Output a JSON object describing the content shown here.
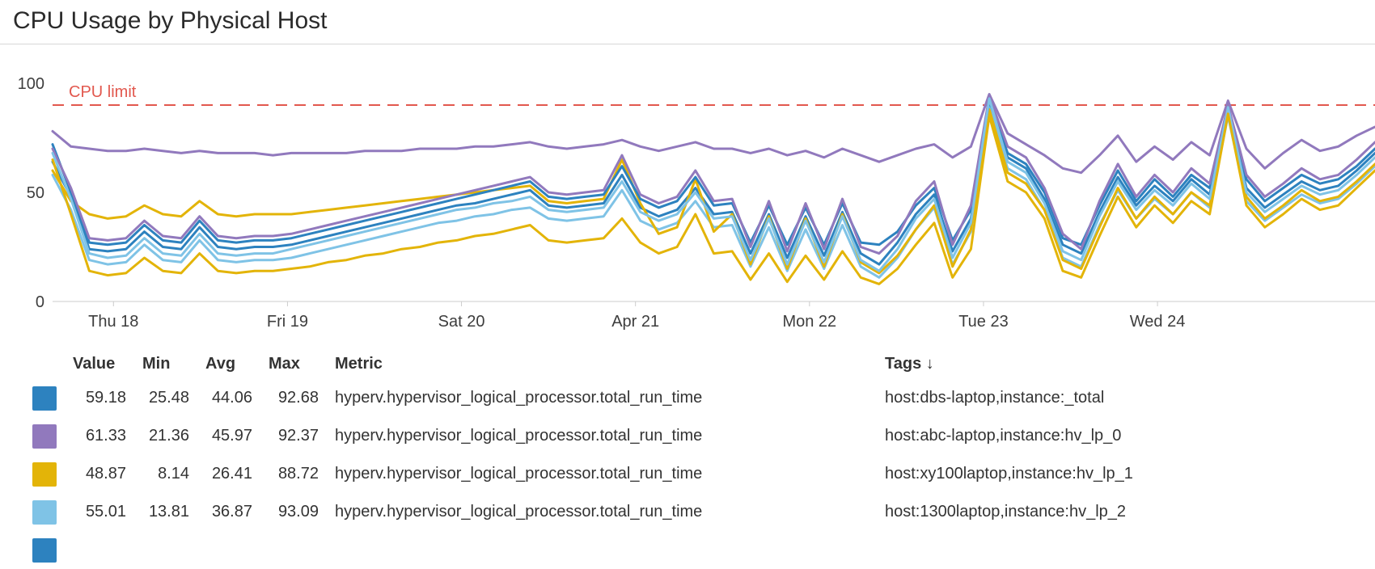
{
  "header": {
    "title": "CPU Usage by Physical Host"
  },
  "chart_data": {
    "type": "line",
    "title": "CPU Usage by Physical Host",
    "xlabel": "",
    "ylabel": "",
    "ylim": [
      0,
      100
    ],
    "grid": false,
    "y_axis": {
      "min": 0,
      "max": 100,
      "ticks": [
        0,
        50,
        100
      ]
    },
    "x_axis": {
      "start_day": 17.65,
      "end_day": 25.25,
      "ticks": [
        {
          "day": 18,
          "label": "Thu 18"
        },
        {
          "day": 19,
          "label": "Fri 19"
        },
        {
          "day": 20,
          "label": "Sat 20"
        },
        {
          "day": 21,
          "label": "Apr 21"
        },
        {
          "day": 22,
          "label": "Mon 22"
        },
        {
          "day": 23,
          "label": "Tue 23"
        },
        {
          "day": 24,
          "label": "Wed 24"
        }
      ]
    },
    "limit_line": {
      "value": 90,
      "label": "CPU limit",
      "color": "#e2584e"
    },
    "series": [
      {
        "label": "",
        "color": "#9179bd",
        "values": [
          78,
          71,
          70,
          69,
          69,
          70,
          69,
          68,
          69,
          68,
          68,
          68,
          67,
          68,
          68,
          68,
          68,
          69,
          69,
          69,
          70,
          70,
          70,
          71,
          71,
          72,
          73,
          71,
          70,
          71,
          72,
          74,
          71,
          69,
          71,
          73,
          70,
          70,
          68,
          70,
          67,
          69,
          66,
          70,
          67,
          64,
          67,
          70,
          72,
          66,
          71,
          95,
          77,
          72,
          67,
          61,
          59,
          67,
          76,
          64,
          71,
          65,
          73,
          67,
          92,
          70,
          61,
          68,
          74,
          69,
          71,
          76,
          80
        ]
      },
      {
        "label": "",
        "color": "#2d82bf",
        "values": [
          64,
          48,
          24,
          23,
          24,
          32,
          25,
          24,
          34,
          25,
          24,
          25,
          25,
          26,
          28,
          30,
          32,
          34,
          36,
          38,
          40,
          42,
          44,
          45,
          47,
          49,
          51,
          44,
          43,
          44,
          45,
          58,
          43,
          39,
          42,
          52,
          40,
          41,
          22,
          40,
          20,
          39,
          21,
          41,
          22,
          17,
          27,
          40,
          49,
          23,
          38,
          90,
          66,
          61,
          47,
          26,
          22,
          41,
          57,
          44,
          53,
          46,
          56,
          49,
          87,
          52,
          43,
          49,
          55,
          51,
          53,
          60,
          68
        ]
      },
      {
        "label": "",
        "color": "#7fc3e6",
        "values": [
          58,
          42,
          19,
          17,
          18,
          26,
          19,
          18,
          28,
          19,
          18,
          19,
          19,
          20,
          22,
          24,
          26,
          28,
          30,
          32,
          34,
          36,
          37,
          39,
          40,
          42,
          43,
          38,
          37,
          38,
          39,
          51,
          37,
          33,
          36,
          46,
          34,
          35,
          16,
          34,
          14,
          33,
          15,
          35,
          16,
          11,
          20,
          33,
          43,
          17,
          32,
          89,
          61,
          56,
          42,
          20,
          16,
          35,
          51,
          38,
          47,
          40,
          50,
          43,
          85,
          46,
          37,
          43,
          49,
          45,
          47,
          54,
          62
        ]
      },
      {
        "label": "",
        "color": "#e3b408",
        "values": [
          60,
          46,
          40,
          38,
          39,
          44,
          40,
          39,
          46,
          40,
          39,
          40,
          40,
          40,
          41,
          42,
          43,
          44,
          45,
          46,
          47,
          48,
          49,
          50,
          51,
          52,
          53,
          46,
          45,
          46,
          47,
          65,
          45,
          31,
          34,
          56,
          32,
          40,
          17,
          39,
          15,
          38,
          16,
          40,
          18,
          13,
          21,
          33,
          44,
          16,
          33,
          88,
          59,
          54,
          42,
          19,
          15,
          34,
          52,
          38,
          48,
          40,
          50,
          44,
          87,
          48,
          38,
          44,
          51,
          46,
          48,
          55,
          63
        ]
      },
      {
        "label": "host:dbs-laptop,instance:_total",
        "color": "#2d82bf",
        "values": [
          72,
          50,
          27,
          26,
          27,
          35,
          28,
          27,
          37,
          28,
          27,
          28,
          28,
          29,
          31,
          33,
          35,
          37,
          39,
          41,
          43,
          45,
          47,
          49,
          51,
          53,
          55,
          48,
          47,
          48,
          49,
          62,
          47,
          43,
          46,
          57,
          44,
          45,
          27,
          44,
          26,
          43,
          26,
          45,
          27,
          26,
          32,
          44,
          52,
          28,
          42,
          92,
          68,
          63,
          50,
          29,
          26,
          44,
          60,
          46,
          56,
          48,
          58,
          52,
          88,
          56,
          46,
          52,
          58,
          54,
          56,
          62,
          70
        ]
      },
      {
        "label": "host:abc-laptop,instance:hv_lp_0",
        "color": "#9179bd",
        "values": [
          70,
          52,
          29,
          28,
          29,
          37,
          30,
          29,
          39,
          30,
          29,
          30,
          30,
          31,
          33,
          35,
          37,
          39,
          41,
          43,
          45,
          47,
          49,
          51,
          53,
          55,
          57,
          50,
          49,
          50,
          51,
          67,
          49,
          45,
          48,
          60,
          46,
          47,
          25,
          46,
          23,
          45,
          24,
          47,
          25,
          22,
          30,
          46,
          55,
          26,
          44,
          94,
          71,
          66,
          52,
          31,
          24,
          46,
          63,
          48,
          58,
          50,
          61,
          54,
          90,
          58,
          48,
          54,
          61,
          56,
          58,
          65,
          73
        ]
      },
      {
        "label": "host:1300laptop,instance:hv_lp_2",
        "color": "#7fc3e6",
        "values": [
          68,
          47,
          22,
          20,
          21,
          29,
          22,
          21,
          31,
          22,
          21,
          22,
          22,
          24,
          26,
          28,
          30,
          32,
          34,
          36,
          38,
          40,
          42,
          43,
          45,
          46,
          48,
          42,
          41,
          42,
          43,
          55,
          41,
          37,
          40,
          50,
          38,
          39,
          19,
          38,
          17,
          37,
          18,
          39,
          19,
          14,
          24,
          38,
          47,
          20,
          36,
          93,
          64,
          59,
          45,
          23,
          19,
          39,
          55,
          42,
          51,
          44,
          54,
          47,
          89,
          50,
          41,
          47,
          53,
          49,
          51,
          58,
          66
        ]
      },
      {
        "label": "host:xy100laptop,instance:hv_lp_1",
        "color": "#e3b408",
        "values": [
          65,
          40,
          14,
          12,
          13,
          20,
          14,
          13,
          22,
          14,
          13,
          14,
          14,
          15,
          16,
          18,
          19,
          21,
          22,
          24,
          25,
          27,
          28,
          30,
          31,
          33,
          35,
          28,
          27,
          28,
          29,
          38,
          27,
          22,
          25,
          40,
          22,
          23,
          10,
          22,
          9,
          21,
          10,
          23,
          11,
          8,
          15,
          26,
          36,
          11,
          24,
          85,
          55,
          50,
          38,
          14,
          11,
          30,
          48,
          34,
          44,
          36,
          46,
          40,
          86,
          44,
          34,
          40,
          47,
          42,
          44,
          52,
          60
        ]
      }
    ]
  },
  "legend": {
    "columns": [
      "Value",
      "Min",
      "Avg",
      "Max",
      "Metric",
      "Tags"
    ],
    "sort_indicator": "↓",
    "rows": [
      {
        "color": "#2d82bf",
        "value": "59.18",
        "min": "25.48",
        "avg": "44.06",
        "max": "92.68",
        "metric": "hyperv.hypervisor_logical_processor.total_run_time",
        "tags": "host:dbs-laptop,instance:_total"
      },
      {
        "color": "#9179bd",
        "value": "61.33",
        "min": "21.36",
        "avg": "45.97",
        "max": "92.37",
        "metric": "hyperv.hypervisor_logical_processor.total_run_time",
        "tags": "host:abc-laptop,instance:hv_lp_0"
      },
      {
        "color": "#e3b408",
        "value": "48.87",
        "min": "8.14",
        "avg": "26.41",
        "max": "88.72",
        "metric": "hyperv.hypervisor_logical_processor.total_run_time",
        "tags": "host:xy100laptop,instance:hv_lp_1"
      },
      {
        "color": "#7fc3e6",
        "value": "55.01",
        "min": "13.81",
        "avg": "36.87",
        "max": "93.09",
        "metric": "hyperv.hypervisor_logical_processor.total_run_time",
        "tags": "host:1300laptop,instance:hv_lp_2"
      }
    ],
    "partial_row_color": "#2d82bf"
  }
}
